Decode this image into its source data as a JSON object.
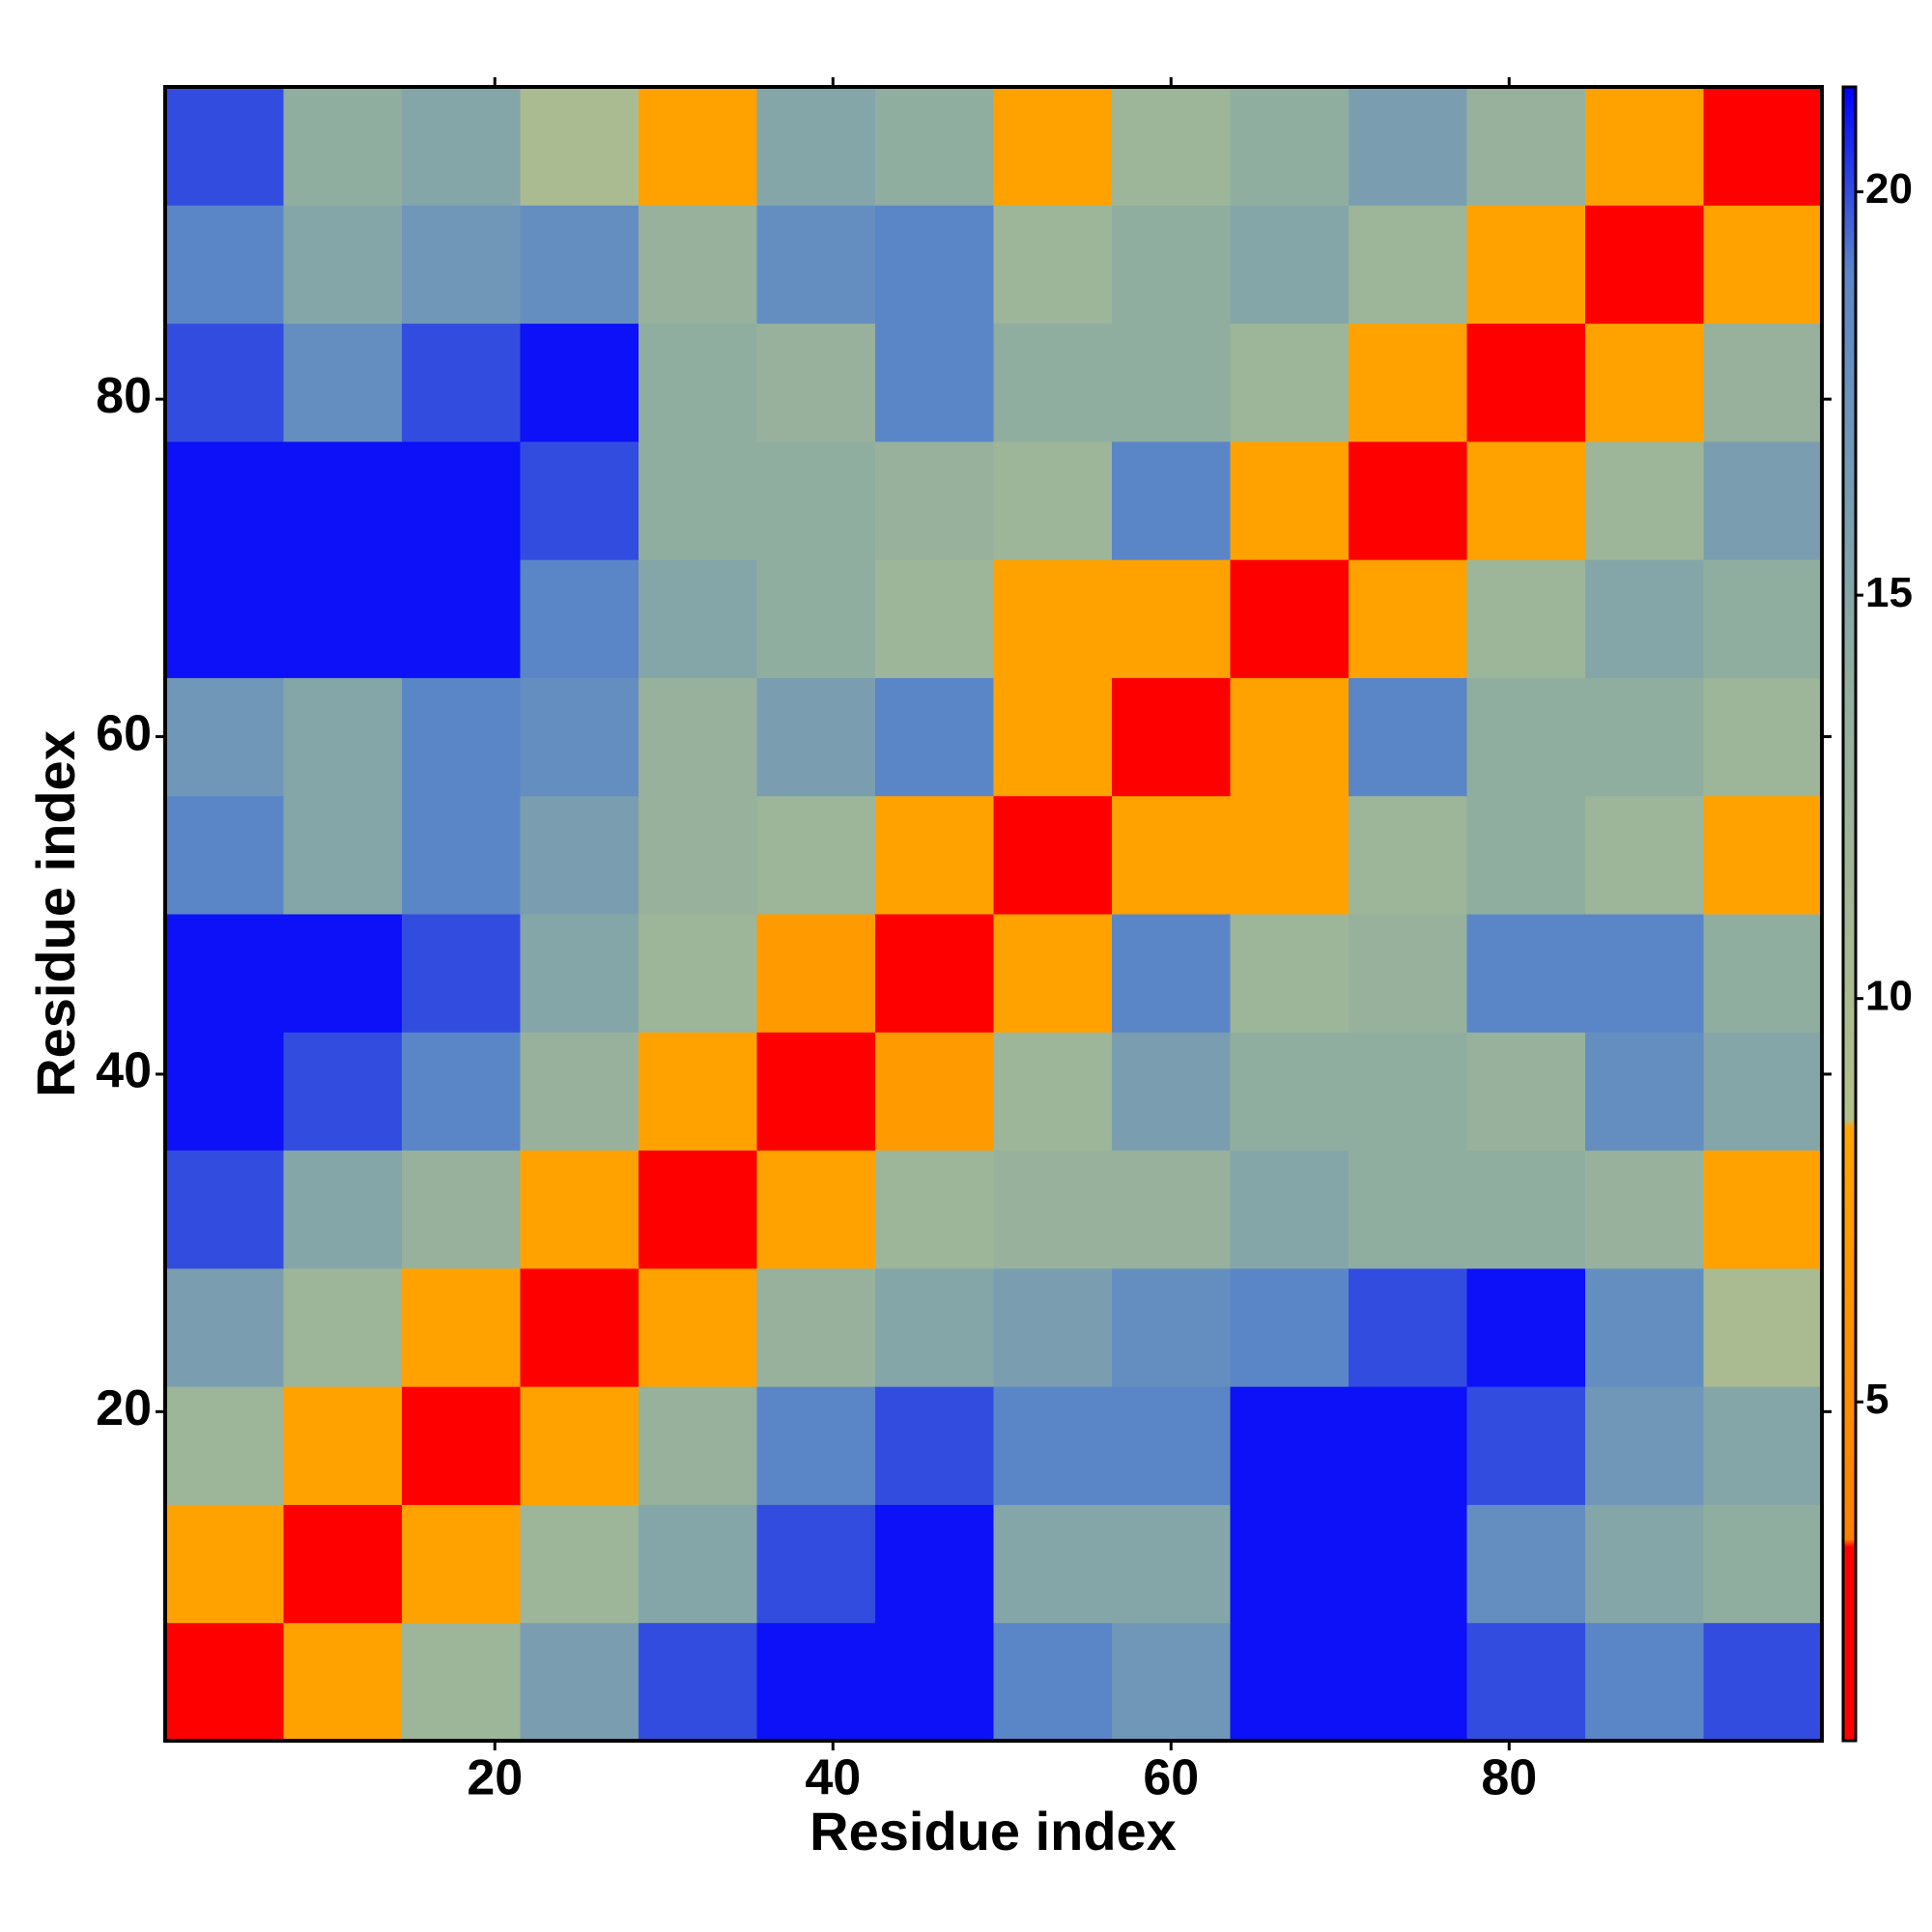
{
  "chart_data": {
    "type": "heatmap",
    "xlabel": "Residue index",
    "ylabel": "Residue index",
    "x_bins": [
      0.5,
      7.5,
      14.5,
      21.5,
      28.5,
      35.5,
      42.5,
      49.5,
      56.5,
      63.5,
      70.5,
      77.5,
      84.5,
      91.5,
      98.5
    ],
    "y_bins": [
      0.5,
      7.5,
      14.5,
      21.5,
      28.5,
      35.5,
      42.5,
      49.5,
      56.5,
      63.5,
      70.5,
      77.5,
      84.5,
      91.5,
      98.5
    ],
    "values": [
      [
        3,
        8,
        12,
        16,
        20,
        21,
        21,
        19,
        17,
        21,
        21,
        20,
        19,
        20
      ],
      [
        8,
        3,
        8,
        12,
        15,
        20,
        21,
        15,
        15,
        21,
        21,
        18,
        15,
        14
      ],
      [
        12,
        8,
        3,
        8,
        13,
        19,
        20,
        19,
        19,
        21,
        21,
        20,
        17,
        15
      ],
      [
        16,
        12,
        8,
        3,
        8,
        13,
        15,
        16,
        18,
        19,
        20,
        21,
        18,
        10
      ],
      [
        20,
        15,
        13,
        8,
        3,
        8,
        12,
        13,
        13,
        15,
        14,
        14,
        13,
        8
      ],
      [
        21,
        20,
        19,
        13,
        8,
        3,
        7,
        12,
        16,
        14,
        14,
        13,
        18,
        15
      ],
      [
        21,
        21,
        20,
        15,
        12,
        7,
        3,
        8,
        19,
        12,
        13,
        19,
        19,
        14
      ],
      [
        19,
        15,
        19,
        16,
        13,
        12,
        8,
        3,
        8,
        8,
        12,
        14,
        12,
        8
      ],
      [
        17,
        15,
        19,
        18,
        13,
        16,
        19,
        8,
        3,
        8,
        19,
        14,
        14,
        12
      ],
      [
        21,
        21,
        21,
        19,
        15,
        14,
        12,
        8,
        8,
        3,
        8,
        12,
        15,
        14
      ],
      [
        21,
        21,
        21,
        20,
        14,
        14,
        13,
        12,
        19,
        8,
        3,
        8,
        12,
        16
      ],
      [
        20,
        18,
        20,
        21,
        14,
        13,
        19,
        14,
        14,
        12,
        8,
        3,
        8,
        13
      ],
      [
        19,
        15,
        17,
        18,
        13,
        18,
        19,
        12,
        14,
        15,
        12,
        8,
        3,
        8
      ],
      [
        20,
        14,
        15,
        10,
        8,
        15,
        14,
        8,
        12,
        14,
        16,
        13,
        8,
        3
      ]
    ],
    "xlim": [
      0.5,
      98.5
    ],
    "ylim": [
      0.5,
      98.5
    ],
    "xticks": [
      20,
      40,
      60,
      80
    ],
    "yticks": [
      20,
      40,
      60,
      80
    ],
    "zlim": [
      0.8,
      21.3
    ],
    "zticks": [
      5,
      10,
      15,
      20
    ],
    "colorscale": [
      [
        0.8,
        "#ff0000"
      ],
      [
        3.2,
        "#ff0000"
      ],
      [
        3.3,
        "#ff8000"
      ],
      [
        8.4,
        "#ffa500"
      ],
      [
        8.5,
        "#b4c08c"
      ],
      [
        14,
        "#90aea0"
      ],
      [
        19,
        "#5a86c8"
      ],
      [
        21.3,
        "#0000ff"
      ]
    ]
  }
}
